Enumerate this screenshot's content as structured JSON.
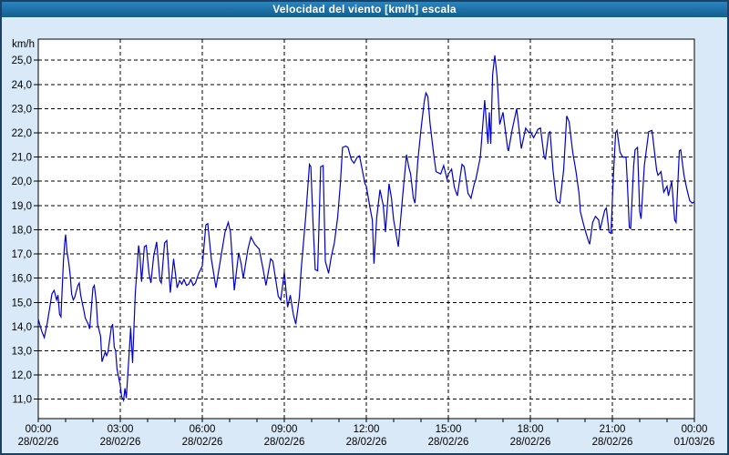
{
  "window": {
    "title": "Velocidad del viento [km/h] escala"
  },
  "colors": {
    "titlebar_bg": "#1d6fa5",
    "titlebar_text": "#ffffff",
    "frame_border": "#1c4166",
    "content_bg": "#d9e9f7",
    "plot_bg": "#ffffff",
    "grid": "#000000",
    "axis": "#000000",
    "line": "#0000cc",
    "label": "#000000"
  },
  "chart_data": {
    "type": "line",
    "title": "Velocidad del viento [km/h] escala",
    "ylabel": "km/h",
    "xlabel": "",
    "grid": true,
    "legend": "none",
    "ylim": [
      10.2,
      25.87
    ],
    "xlim_hours": [
      0,
      24
    ],
    "minor_x_tick_hours": 1,
    "y_ticks": [
      {
        "value": 25,
        "label": "25,0"
      },
      {
        "value": 24,
        "label": "24,0"
      },
      {
        "value": 23,
        "label": "23,0"
      },
      {
        "value": 22,
        "label": "22,0"
      },
      {
        "value": 21,
        "label": "21,0"
      },
      {
        "value": 20,
        "label": "20,0"
      },
      {
        "value": 19,
        "label": "19,0"
      },
      {
        "value": 18,
        "label": "18,0"
      },
      {
        "value": 17,
        "label": "17,0"
      },
      {
        "value": 16,
        "label": "16,0"
      },
      {
        "value": 15,
        "label": "15,0"
      },
      {
        "value": 14,
        "label": "14,0"
      },
      {
        "value": 13,
        "label": "13,0"
      },
      {
        "value": 12,
        "label": "12,0"
      },
      {
        "value": 11,
        "label": "11,0"
      }
    ],
    "x_ticks": [
      {
        "hour": 0,
        "time": "00:00",
        "date": "28/02/26"
      },
      {
        "hour": 3,
        "time": "03:00",
        "date": "28/02/26"
      },
      {
        "hour": 6,
        "time": "06:00",
        "date": "28/02/26"
      },
      {
        "hour": 9,
        "time": "09:00",
        "date": "28/02/26"
      },
      {
        "hour": 12,
        "time": "12:00",
        "date": "28/02/26"
      },
      {
        "hour": 15,
        "time": "15:00",
        "date": "28/02/26"
      },
      {
        "hour": 18,
        "time": "18:00",
        "date": "28/02/26"
      },
      {
        "hour": 21,
        "time": "21:00",
        "date": "28/02/26"
      },
      {
        "hour": 24,
        "time": "00:00",
        "date": "01/03/26"
      }
    ],
    "series": [
      {
        "name": "Velocidad del viento [km/h]",
        "points": [
          [
            0.0,
            14.3
          ],
          [
            0.13,
            13.8
          ],
          [
            0.22,
            13.55
          ],
          [
            0.33,
            14.15
          ],
          [
            0.5,
            15.35
          ],
          [
            0.58,
            15.5
          ],
          [
            0.67,
            15.1
          ],
          [
            0.72,
            15.3
          ],
          [
            0.78,
            14.5
          ],
          [
            0.83,
            14.4
          ],
          [
            0.92,
            16.7
          ],
          [
            0.97,
            17.5
          ],
          [
            1.0,
            17.8
          ],
          [
            1.05,
            17.1
          ],
          [
            1.12,
            16.6
          ],
          [
            1.17,
            16.1
          ],
          [
            1.22,
            15.35
          ],
          [
            1.28,
            15.1
          ],
          [
            1.33,
            15.2
          ],
          [
            1.45,
            15.7
          ],
          [
            1.5,
            15.8
          ],
          [
            1.55,
            15.3
          ],
          [
            1.67,
            14.65
          ],
          [
            1.72,
            14.35
          ],
          [
            1.83,
            14.1
          ],
          [
            1.88,
            13.9
          ],
          [
            2.0,
            15.6
          ],
          [
            2.05,
            15.7
          ],
          [
            2.12,
            15.05
          ],
          [
            2.17,
            14.1
          ],
          [
            2.28,
            13.6
          ],
          [
            2.33,
            12.55
          ],
          [
            2.45,
            12.95
          ],
          [
            2.5,
            12.8
          ],
          [
            2.55,
            12.95
          ],
          [
            2.67,
            13.95
          ],
          [
            2.72,
            14.1
          ],
          [
            2.78,
            13.15
          ],
          [
            2.83,
            13.0
          ],
          [
            2.88,
            12.25
          ],
          [
            2.95,
            11.85
          ],
          [
            3.0,
            11.55
          ],
          [
            3.05,
            11.1
          ],
          [
            3.12,
            10.95
          ],
          [
            3.17,
            11.45
          ],
          [
            3.22,
            11.05
          ],
          [
            3.33,
            13.0
          ],
          [
            3.38,
            13.95
          ],
          [
            3.45,
            12.5
          ],
          [
            3.55,
            15.4
          ],
          [
            3.62,
            16.5
          ],
          [
            3.67,
            17.35
          ],
          [
            3.72,
            16.9
          ],
          [
            3.78,
            15.85
          ],
          [
            3.88,
            17.3
          ],
          [
            3.95,
            17.35
          ],
          [
            4.05,
            16.2
          ],
          [
            4.12,
            15.8
          ],
          [
            4.22,
            16.9
          ],
          [
            4.33,
            17.5
          ],
          [
            4.45,
            15.9
          ],
          [
            4.5,
            15.8
          ],
          [
            4.62,
            17.45
          ],
          [
            4.7,
            17.55
          ],
          [
            4.83,
            15.4
          ],
          [
            4.95,
            16.8
          ],
          [
            5.08,
            15.6
          ],
          [
            5.17,
            15.9
          ],
          [
            5.25,
            15.75
          ],
          [
            5.33,
            15.95
          ],
          [
            5.42,
            15.7
          ],
          [
            5.5,
            15.75
          ],
          [
            5.58,
            15.95
          ],
          [
            5.67,
            15.7
          ],
          [
            5.75,
            15.8
          ],
          [
            5.87,
            16.2
          ],
          [
            6.0,
            16.5
          ],
          [
            6.13,
            18.2
          ],
          [
            6.2,
            18.25
          ],
          [
            6.33,
            16.8
          ],
          [
            6.5,
            15.6
          ],
          [
            6.67,
            16.8
          ],
          [
            6.83,
            17.9
          ],
          [
            6.95,
            18.3
          ],
          [
            7.03,
            17.9
          ],
          [
            7.17,
            15.5
          ],
          [
            7.33,
            17.05
          ],
          [
            7.42,
            16.6
          ],
          [
            7.5,
            16.0
          ],
          [
            7.67,
            17.2
          ],
          [
            7.78,
            17.7
          ],
          [
            7.92,
            17.4
          ],
          [
            8.08,
            17.2
          ],
          [
            8.22,
            16.4
          ],
          [
            8.33,
            15.7
          ],
          [
            8.5,
            16.8
          ],
          [
            8.58,
            16.7
          ],
          [
            8.78,
            15.25
          ],
          [
            8.87,
            15.1
          ],
          [
            9.0,
            16.25
          ],
          [
            9.12,
            14.8
          ],
          [
            9.22,
            15.3
          ],
          [
            9.33,
            14.5
          ],
          [
            9.42,
            14.1
          ],
          [
            9.55,
            15.2
          ],
          [
            9.62,
            16.4
          ],
          [
            9.78,
            18.5
          ],
          [
            9.92,
            20.7
          ],
          [
            9.97,
            20.6
          ],
          [
            10.05,
            18.3
          ],
          [
            10.13,
            16.35
          ],
          [
            10.22,
            16.3
          ],
          [
            10.33,
            20.6
          ],
          [
            10.42,
            20.65
          ],
          [
            10.5,
            16.7
          ],
          [
            10.62,
            16.2
          ],
          [
            10.72,
            16.9
          ],
          [
            10.83,
            17.45
          ],
          [
            10.95,
            18.5
          ],
          [
            11.05,
            19.9
          ],
          [
            11.13,
            21.4
          ],
          [
            11.25,
            21.45
          ],
          [
            11.33,
            21.4
          ],
          [
            11.45,
            20.9
          ],
          [
            11.55,
            20.75
          ],
          [
            11.67,
            21.0
          ],
          [
            11.75,
            21.05
          ],
          [
            11.83,
            20.6
          ],
          [
            11.95,
            19.9
          ],
          [
            12.0,
            19.8
          ],
          [
            12.12,
            19.0
          ],
          [
            12.22,
            18.4
          ],
          [
            12.28,
            16.6
          ],
          [
            12.38,
            18.5
          ],
          [
            12.5,
            19.65
          ],
          [
            12.62,
            19.0
          ],
          [
            12.7,
            17.9
          ],
          [
            12.83,
            19.9
          ],
          [
            12.92,
            19.3
          ],
          [
            13.0,
            18.4
          ],
          [
            13.17,
            17.3
          ],
          [
            13.33,
            19.4
          ],
          [
            13.47,
            21.1
          ],
          [
            13.55,
            20.6
          ],
          [
            13.62,
            20.3
          ],
          [
            13.72,
            19.3
          ],
          [
            13.78,
            19.1
          ],
          [
            13.88,
            20.8
          ],
          [
            14.0,
            22.15
          ],
          [
            14.12,
            23.3
          ],
          [
            14.18,
            23.65
          ],
          [
            14.25,
            23.5
          ],
          [
            14.33,
            22.4
          ],
          [
            14.45,
            21.25
          ],
          [
            14.55,
            20.4
          ],
          [
            14.72,
            20.3
          ],
          [
            14.83,
            20.65
          ],
          [
            14.95,
            20.1
          ],
          [
            15.0,
            20.3
          ],
          [
            15.12,
            20.5
          ],
          [
            15.22,
            19.75
          ],
          [
            15.33,
            19.4
          ],
          [
            15.5,
            20.7
          ],
          [
            15.58,
            20.6
          ],
          [
            15.72,
            19.5
          ],
          [
            15.83,
            19.3
          ],
          [
            15.95,
            19.9
          ],
          [
            16.0,
            20.05
          ],
          [
            16.17,
            21.0
          ],
          [
            16.33,
            23.35
          ],
          [
            16.45,
            21.55
          ],
          [
            16.5,
            22.85
          ],
          [
            16.55,
            21.55
          ],
          [
            16.62,
            24.4
          ],
          [
            16.7,
            25.2
          ],
          [
            16.78,
            24.35
          ],
          [
            16.83,
            23.4
          ],
          [
            16.88,
            22.35
          ],
          [
            17.0,
            22.85
          ],
          [
            17.17,
            21.35
          ],
          [
            17.2,
            21.25
          ],
          [
            17.33,
            22.1
          ],
          [
            17.5,
            23.0
          ],
          [
            17.67,
            21.35
          ],
          [
            17.83,
            22.2
          ],
          [
            17.95,
            22.0
          ],
          [
            18.0,
            22.05
          ],
          [
            18.12,
            21.8
          ],
          [
            18.28,
            22.15
          ],
          [
            18.37,
            22.2
          ],
          [
            18.5,
            21.05
          ],
          [
            18.55,
            20.9
          ],
          [
            18.67,
            22.0
          ],
          [
            18.72,
            22.05
          ],
          [
            18.83,
            20.45
          ],
          [
            18.95,
            19.25
          ],
          [
            19.0,
            19.15
          ],
          [
            19.08,
            19.1
          ],
          [
            19.22,
            20.5
          ],
          [
            19.33,
            22.7
          ],
          [
            19.42,
            22.45
          ],
          [
            19.55,
            21.2
          ],
          [
            19.67,
            20.4
          ],
          [
            19.78,
            19.5
          ],
          [
            19.83,
            18.75
          ],
          [
            19.95,
            18.2
          ],
          [
            20.0,
            18.0
          ],
          [
            20.12,
            17.55
          ],
          [
            20.17,
            17.4
          ],
          [
            20.28,
            18.3
          ],
          [
            20.38,
            18.55
          ],
          [
            20.5,
            18.4
          ],
          [
            20.55,
            18.0
          ],
          [
            20.72,
            18.8
          ],
          [
            20.78,
            18.9
          ],
          [
            20.88,
            17.9
          ],
          [
            20.95,
            17.85
          ],
          [
            21.03,
            20.05
          ],
          [
            21.12,
            22.0
          ],
          [
            21.17,
            22.1
          ],
          [
            21.28,
            21.2
          ],
          [
            21.38,
            21.0
          ],
          [
            21.5,
            21.0
          ],
          [
            21.55,
            19.9
          ],
          [
            21.62,
            18.1
          ],
          [
            21.67,
            18.05
          ],
          [
            21.78,
            20.65
          ],
          [
            21.83,
            21.3
          ],
          [
            21.92,
            21.4
          ],
          [
            22.0,
            18.75
          ],
          [
            22.05,
            18.45
          ],
          [
            22.17,
            20.65
          ],
          [
            22.33,
            22.05
          ],
          [
            22.45,
            22.1
          ],
          [
            22.62,
            20.45
          ],
          [
            22.67,
            20.25
          ],
          [
            22.78,
            20.4
          ],
          [
            22.88,
            19.55
          ],
          [
            23.0,
            19.8
          ],
          [
            23.05,
            19.4
          ],
          [
            23.17,
            20.0
          ],
          [
            23.28,
            18.4
          ],
          [
            23.33,
            18.3
          ],
          [
            23.45,
            21.25
          ],
          [
            23.5,
            21.3
          ],
          [
            23.62,
            20.25
          ],
          [
            23.72,
            19.7
          ],
          [
            23.83,
            19.2
          ],
          [
            23.92,
            19.1
          ],
          [
            24.0,
            19.15
          ]
        ]
      }
    ]
  }
}
